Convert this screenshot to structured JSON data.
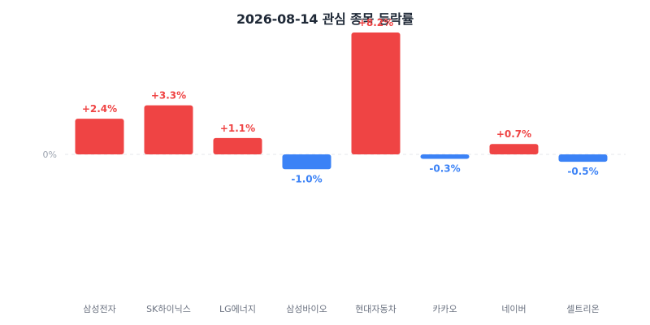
{
  "chart_data": {
    "type": "bar",
    "title": "2026-08-14 관심 종목 등락률",
    "categories": [
      "삼성전자",
      "SK하이닉스",
      "LG에너지",
      "삼성바이오",
      "현대자동차",
      "카카오",
      "네이버",
      "셀트리온"
    ],
    "values": [
      2.4,
      3.3,
      1.1,
      -1.0,
      8.2,
      -0.3,
      0.7,
      -0.5
    ],
    "value_labels": [
      "+2.4%",
      "+3.3%",
      "+1.1%",
      "-1.0%",
      "+8.2%",
      "-0.3%",
      "+0.7%",
      "-0.5%"
    ],
    "y_tick_label": "0%",
    "ylim": [
      -8.2,
      8.2
    ],
    "grid": false,
    "baseline": "dashed",
    "colors": {
      "positive": "#ef4444",
      "negative": "#3b82f6",
      "axis_text": "#9ca3af",
      "category_text": "#6b7280",
      "baseline": "#e5e7eb"
    }
  }
}
